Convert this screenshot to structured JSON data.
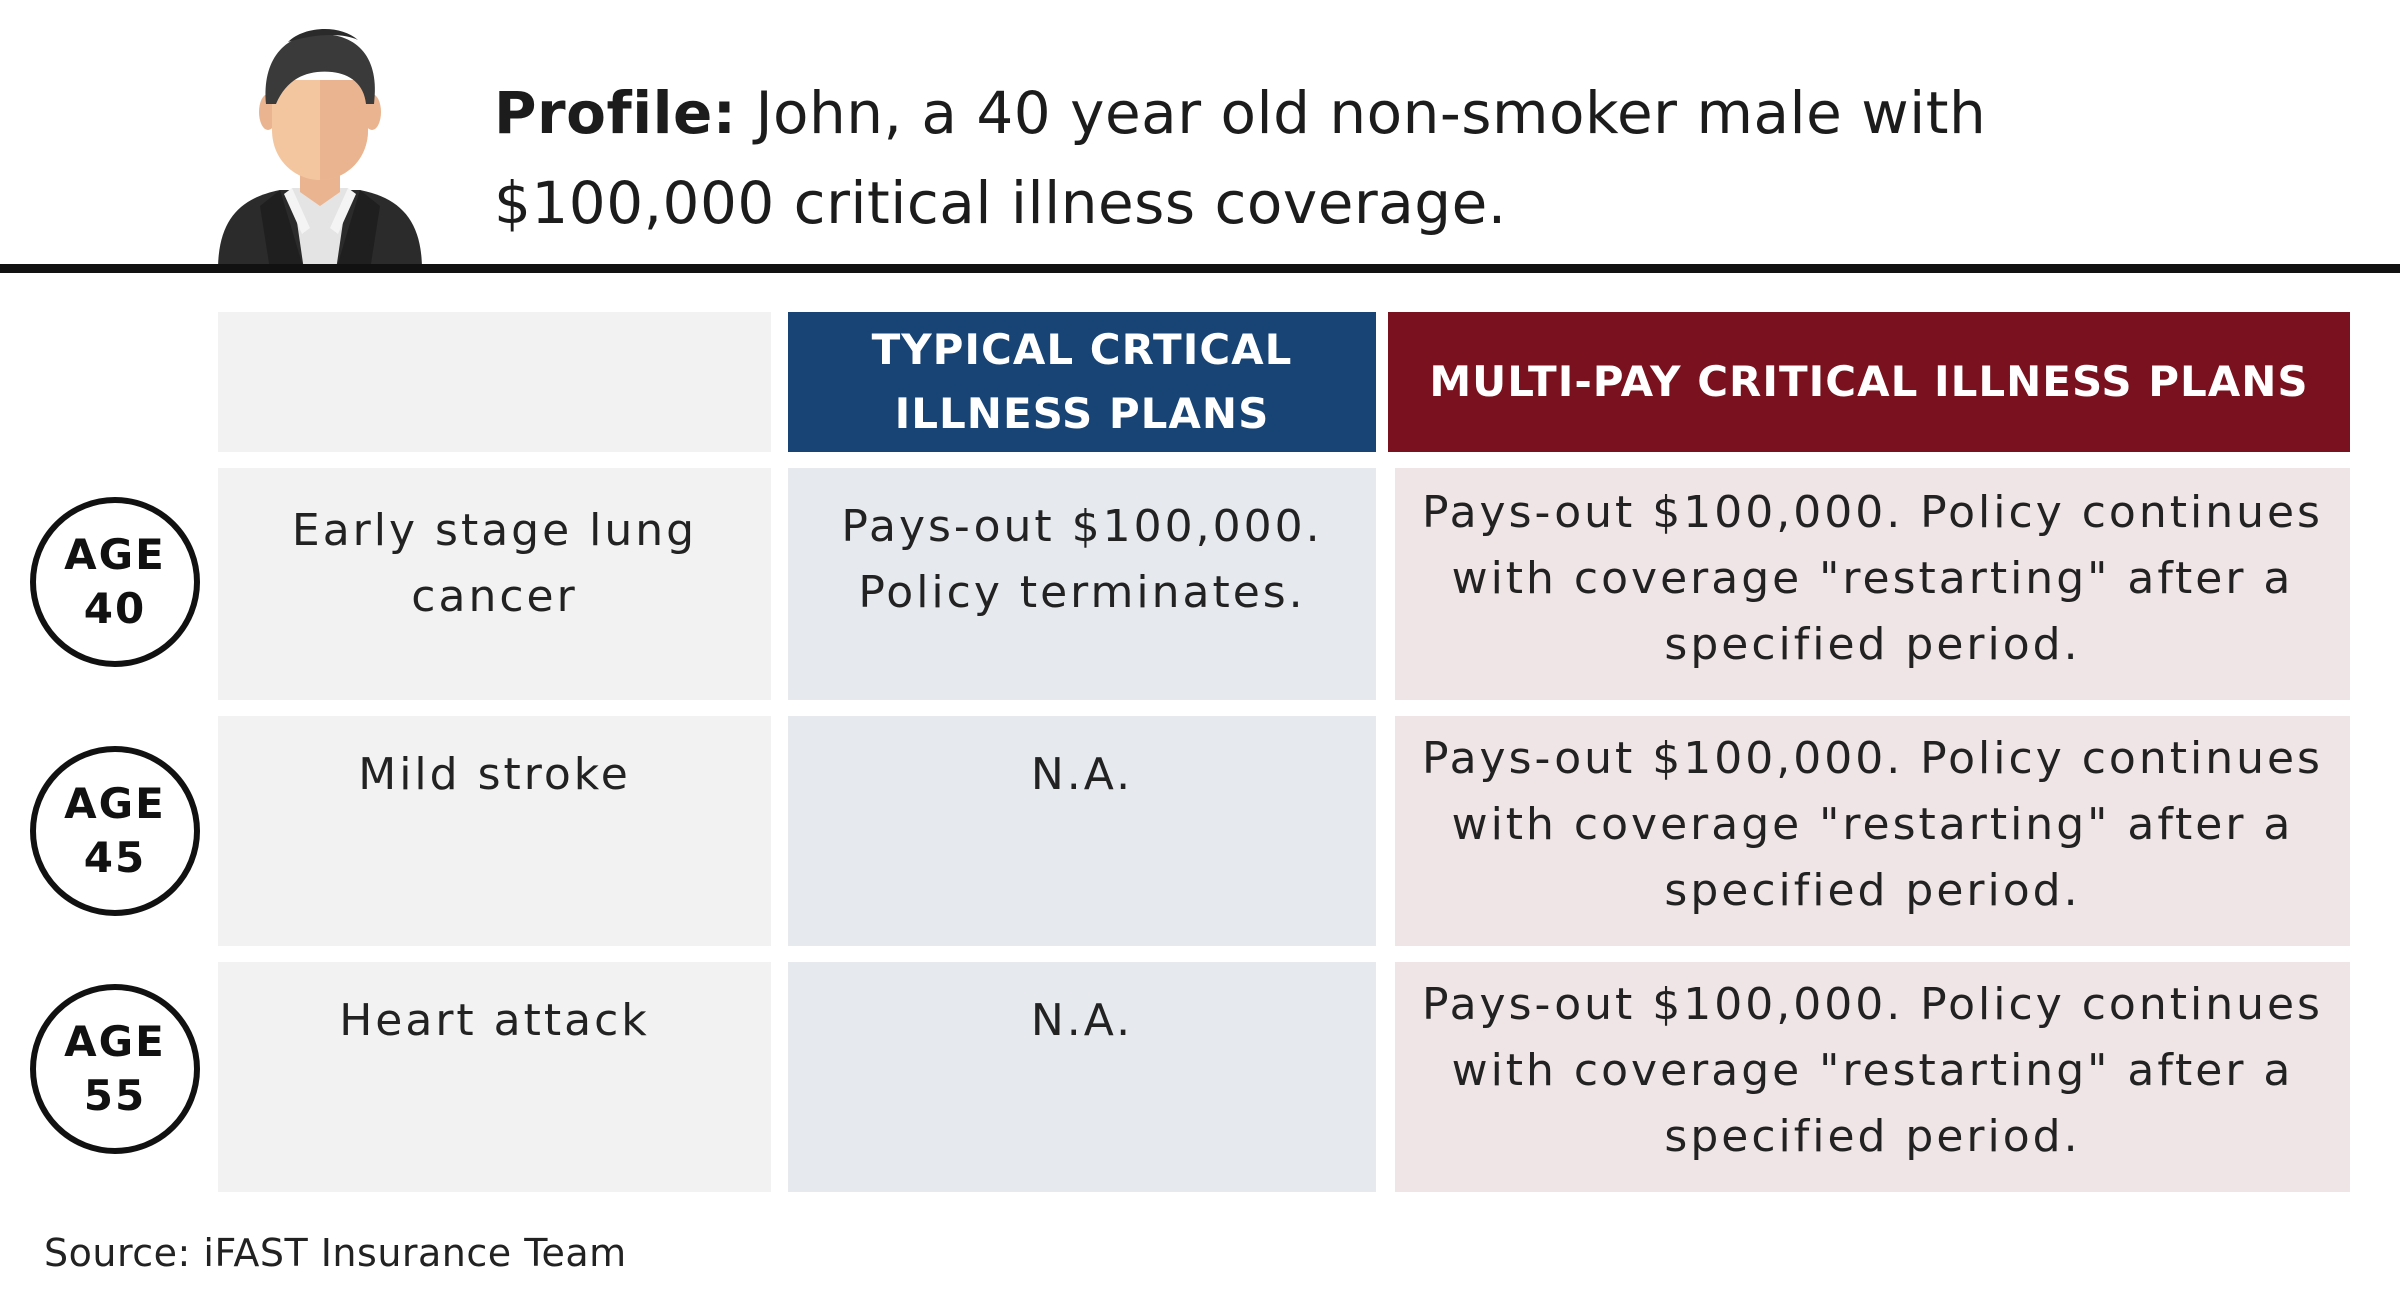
{
  "profile": {
    "label": "Profile:",
    "line1": "John, a 40 year old non-smoker male with",
    "line2": "$100,000 critical illness coverage."
  },
  "icons": {
    "avatar": "businessman-avatar-icon"
  },
  "table": {
    "headers": {
      "typical_line1": "TYPICAL CRTICAL",
      "typical_line2": "ILLNESS PLANS",
      "multi": "MULTI-PAY CRITICAL ILLNESS PLANS"
    },
    "rows": [
      {
        "age_label": "AGE",
        "age_value": "40",
        "condition_line1": "Early stage lung",
        "condition_line2": "cancer",
        "typical_line1": "Pays-out $100,000.",
        "typical_line2": "Policy terminates.",
        "multi_line1": "Pays-out $100,000. Policy continues",
        "multi_line2": "with coverage \"restarting\" after a",
        "multi_line3": "specified period."
      },
      {
        "age_label": "AGE",
        "age_value": "45",
        "condition_line1": "Mild stroke",
        "typical_line1": "N.A.",
        "multi_line1": "Pays-out $100,000. Policy continues",
        "multi_line2": "with coverage \"restarting\" after a",
        "multi_line3": "specified period."
      },
      {
        "age_label": "AGE",
        "age_value": "55",
        "condition_line1": "Heart attack",
        "typical_line1": "N.A.",
        "multi_line1": "Pays-out $100,000. Policy continues",
        "multi_line2": "with coverage \"restarting\" after a",
        "multi_line3": "specified period."
      }
    ]
  },
  "source": "Source: iFAST Insurance Team",
  "colors": {
    "typical_header": "#174474",
    "multi_header": "#7a111e",
    "typical_cell": "#e6e9ee",
    "multi_cell": "#efe5e6",
    "condition_cell": "#f2f2f2"
  }
}
